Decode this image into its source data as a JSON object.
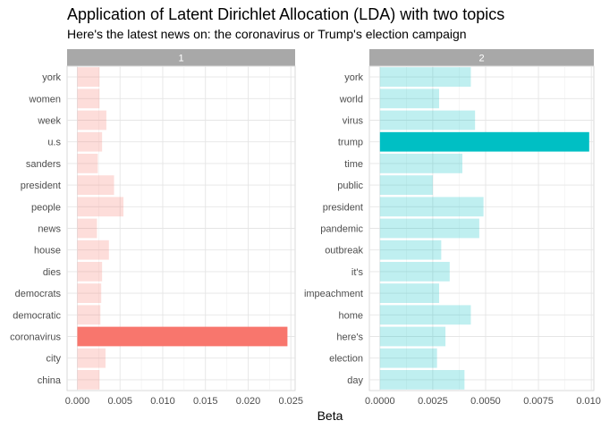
{
  "title": "Application of Latent Dirichlet Allocation (LDA) with two topics",
  "subtitle": "Here's the latest news on: the coronavirus or Trump's election campaign",
  "chart_data": [
    {
      "type": "bar",
      "orientation": "horizontal",
      "panel_label": "1",
      "categories": [
        "york",
        "women",
        "week",
        "u.s",
        "sanders",
        "president",
        "people",
        "news",
        "house",
        "dies",
        "democrats",
        "democratic",
        "coronavirus",
        "city",
        "china"
      ],
      "values": [
        0.0026,
        0.0026,
        0.0034,
        0.0029,
        0.0024,
        0.0043,
        0.0054,
        0.0023,
        0.0037,
        0.0029,
        0.0028,
        0.0027,
        0.0246,
        0.0033,
        0.0026
      ],
      "xlim": [
        -0.0012,
        0.0255
      ],
      "xticks": [
        0.0,
        0.005,
        0.01,
        0.015,
        0.02,
        0.025
      ],
      "xtick_labels": [
        "0.000",
        "0.005",
        "0.010",
        "0.015",
        "0.020",
        "0.025"
      ],
      "bar_color": "#F8766D",
      "highlight_category": "coronavirus",
      "xlabel": "",
      "ylabel": ""
    },
    {
      "type": "bar",
      "orientation": "horizontal",
      "panel_label": "2",
      "categories": [
        "york",
        "world",
        "virus",
        "trump",
        "time",
        "public",
        "president",
        "pandemic",
        "outbreak",
        "it's",
        "impeachment",
        "home",
        "here's",
        "election",
        "day"
      ],
      "values": [
        0.0043,
        0.0028,
        0.0045,
        0.0099,
        0.0039,
        0.0025,
        0.0049,
        0.0047,
        0.0029,
        0.0033,
        0.0028,
        0.0043,
        0.0031,
        0.0027,
        0.004
      ],
      "xlim": [
        -0.0005,
        0.01012
      ],
      "xticks": [
        0.0,
        0.0025,
        0.005,
        0.0075,
        0.01
      ],
      "xtick_labels": [
        "0.0000",
        "0.0025",
        "0.0050",
        "0.0075",
        "0.0100"
      ],
      "bar_color": "#00BFC4",
      "highlight_category": "trump",
      "xlabel": "",
      "ylabel": ""
    }
  ],
  "shared_xlabel": "Beta",
  "style": {
    "strip_fill": "#A8A8A8",
    "strip_text": "#ffffff",
    "grid_color": "#E5E5E5",
    "panel_border": "#D9D9D9",
    "tick_text": "#4D4D4D",
    "highlight_alpha": 1.0,
    "dim_alpha": 0.25
  }
}
